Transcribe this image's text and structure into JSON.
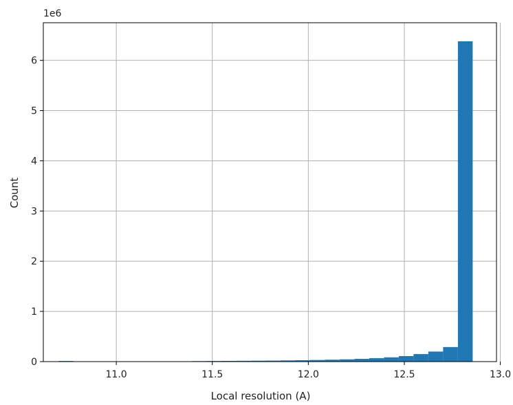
{
  "chart_data": {
    "type": "bar",
    "subtype": "histogram",
    "xlabel": "Local resolution (A)",
    "ylabel": "Count",
    "y_offset_text": "1e6",
    "xlim": [
      10.62,
      12.98
    ],
    "ylim": [
      0,
      6.75
    ],
    "y_scale_multiplier": 1000000,
    "x_ticks": [
      11.0,
      11.5,
      12.0,
      12.5,
      13.0
    ],
    "x_tick_labels": [
      "11.0",
      "11.5",
      "12.0",
      "12.5",
      "13.0"
    ],
    "y_ticks": [
      0,
      1,
      2,
      3,
      4,
      5,
      6
    ],
    "y_tick_labels": [
      "0",
      "1",
      "2",
      "3",
      "4",
      "5",
      "6"
    ],
    "grid": true,
    "bar_color": "#1f77b4",
    "bin_edges": [
      10.7,
      10.777,
      10.854,
      10.931,
      11.008,
      11.085,
      11.162,
      11.239,
      11.316,
      11.393,
      11.47,
      11.547,
      11.624,
      11.701,
      11.778,
      11.855,
      11.932,
      12.009,
      12.086,
      12.163,
      12.24,
      12.317,
      12.394,
      12.471,
      12.548,
      12.625,
      12.702,
      12.779,
      12.856,
      12.933
    ],
    "values": [
      0.012,
      0,
      0,
      0,
      0,
      0,
      0,
      0,
      0,
      0.01,
      0.012,
      0.014,
      0.016,
      0.018,
      0.02,
      0.024,
      0.028,
      0.032,
      0.038,
      0.045,
      0.055,
      0.068,
      0.085,
      0.11,
      0.15,
      0.2,
      0.29,
      6.38,
      0
    ]
  }
}
